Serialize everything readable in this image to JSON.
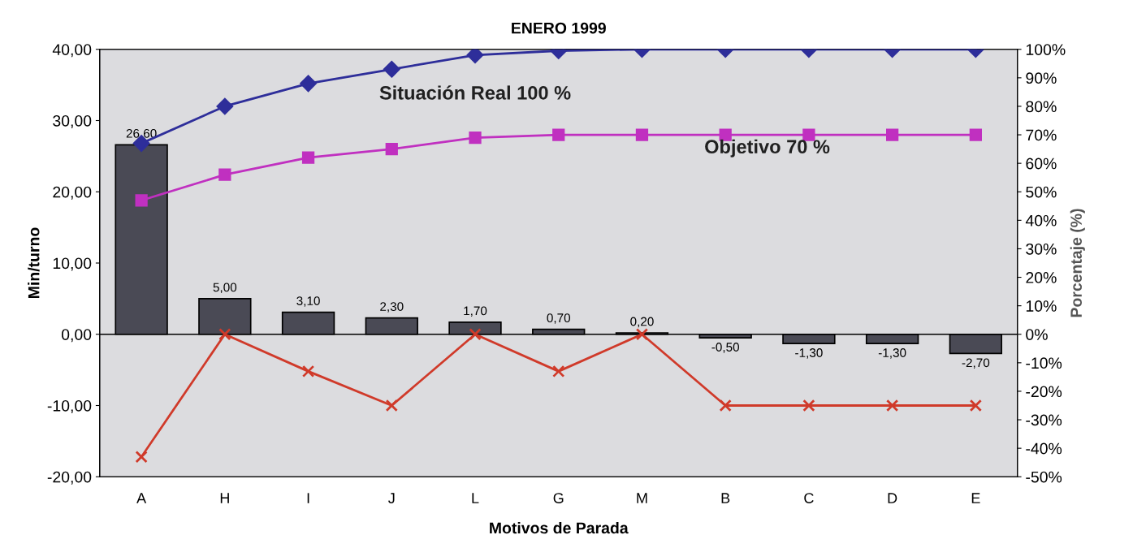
{
  "chart_data": {
    "type": "bar",
    "title": "ENERO 1999",
    "xlabel": "Motivos de Parada",
    "ylabel": "Min/turno",
    "y2label": "Porcentaje (%)",
    "categories": [
      "A",
      "H",
      "I",
      "J",
      "L",
      "G",
      "M",
      "B",
      "C",
      "D",
      "E"
    ],
    "series": [
      {
        "color": "#4a4a55",
        "values": [
          26.6,
          5.0,
          3.1,
          2.3,
          1.7,
          0.7,
          0.2,
          -0.5,
          -1.3,
          -1.3,
          -2.7
        ],
        "value_labels": [
          "26,60",
          "5,00",
          "3,10",
          "2,30",
          "1,70",
          "0,70",
          "0,20",
          "-0,50",
          "-1,30",
          "-1,30",
          "-2,70"
        ]
      },
      {
        "type": "line",
        "axis": "y2",
        "name": "Situación Real 100 %",
        "color": "#2e2e9a",
        "marker": "diamond",
        "values": [
          67,
          80,
          88,
          93,
          98,
          99.5,
          100,
          100,
          100,
          100,
          100
        ]
      },
      {
        "type": "line",
        "axis": "y2",
        "name": "Objetivo 70 %",
        "color": "#c030c0",
        "marker": "square",
        "values": [
          47,
          56,
          62,
          65,
          69,
          70,
          70,
          70,
          70,
          70,
          70
        ]
      },
      {
        "type": "line",
        "axis": "y2",
        "color": "#d03a2a",
        "marker": "cross",
        "values": [
          -43,
          0,
          -13,
          -25,
          0,
          -13,
          0,
          -25,
          -25,
          -25,
          -25
        ]
      }
    ],
    "ylim": [
      -20,
      40
    ],
    "yticks": [
      {
        "value": -20,
        "label": "-20,00"
      },
      {
        "value": -10,
        "label": "-10,00"
      },
      {
        "value": 0,
        "label": "0,00"
      },
      {
        "value": 10,
        "label": "10,00"
      },
      {
        "value": 20,
        "label": "20,00"
      },
      {
        "value": 30,
        "label": "30,00"
      },
      {
        "value": 40,
        "label": "40,00"
      }
    ],
    "y2lim": [
      -50,
      100
    ],
    "y2ticks": [
      {
        "value": -50,
        "label": "-50%"
      },
      {
        "value": -40,
        "label": "-40%"
      },
      {
        "value": -30,
        "label": "-30%"
      },
      {
        "value": -20,
        "label": "-20%"
      },
      {
        "value": -10,
        "label": "-10%"
      },
      {
        "value": 0,
        "label": "0%"
      },
      {
        "value": 10,
        "label": "10%"
      },
      {
        "value": 20,
        "label": "20%"
      },
      {
        "value": 30,
        "label": "30%"
      },
      {
        "value": 40,
        "label": "40%"
      },
      {
        "value": 50,
        "label": "50%"
      },
      {
        "value": 60,
        "label": "60%"
      },
      {
        "value": 70,
        "label": "70%"
      },
      {
        "value": 80,
        "label": "80%"
      },
      {
        "value": 90,
        "label": "90%"
      },
      {
        "value": 100,
        "label": "100%"
      }
    ],
    "ref_lines": [
      {
        "axis": "y",
        "value": 0,
        "color": "#000000"
      }
    ],
    "grid": false,
    "legend": false
  }
}
